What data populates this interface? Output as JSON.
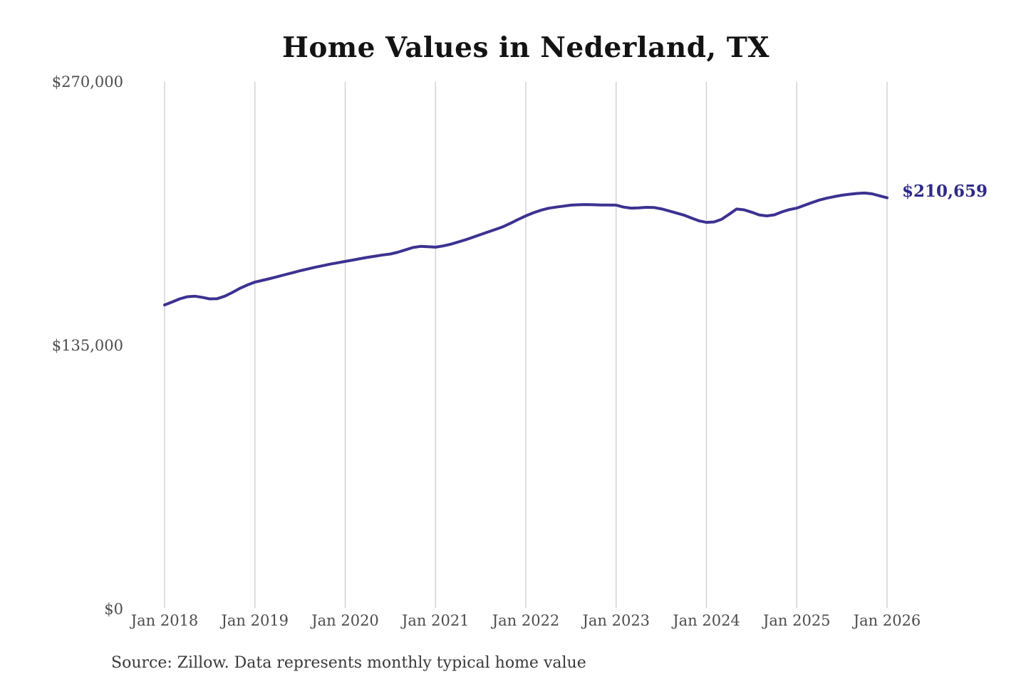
{
  "title": "Home Values in Nederland, TX",
  "annotation": {
    "end_label": "$210,659"
  },
  "source_note": "Source: Zillow. Data represents monthly typical home value",
  "colors": {
    "background": "#ffffff",
    "title_text": "#131313",
    "axis_text": "#4d4d4d",
    "gridline": "#cccccc",
    "line": "#3b3291",
    "end_label_text": "#2f2a87",
    "source_text": "#3a3a3a"
  },
  "chart_data": {
    "type": "line",
    "title": "Home Values in Nederland, TX",
    "xlabel": "",
    "ylabel": "",
    "x_unit": "month",
    "x_start": "2018-01",
    "x_end": "2026-01",
    "x_tick_labels": [
      "Jan 2018",
      "Jan 2019",
      "Jan 2020",
      "Jan 2021",
      "Jan 2022",
      "Jan 2023",
      "Jan 2024",
      "Jan 2025",
      "Jan 2026"
    ],
    "y_ticks": [
      {
        "label": "$0",
        "value": 0
      },
      {
        "label": "$135,000",
        "value": 135000
      },
      {
        "label": "$270,000",
        "value": 270000
      }
    ],
    "ylim": [
      0,
      270000
    ],
    "grid": "vertical-only",
    "legend": "none",
    "series": [
      {
        "name": "Typical home value (USD)",
        "final_value": 210659,
        "final_value_label": "$210,659",
        "values": [
          155800,
          157300,
          158900,
          160000,
          160300,
          159700,
          158900,
          159000,
          160300,
          162200,
          164300,
          166000,
          167500,
          168400,
          169300,
          170300,
          171300,
          172300,
          173300,
          174200,
          175100,
          175900,
          176700,
          177400,
          178100,
          178800,
          179500,
          180200,
          180800,
          181400,
          181900,
          182800,
          184000,
          185200,
          185800,
          185600,
          185400,
          186000,
          186900,
          188000,
          189200,
          190500,
          191900,
          193200,
          194500,
          195900,
          197700,
          199600,
          201400,
          203000,
          204300,
          205300,
          205900,
          206400,
          206900,
          207100,
          207200,
          207100,
          207000,
          207000,
          206900,
          205900,
          205400,
          205500,
          205800,
          205700,
          205000,
          204000,
          202900,
          201800,
          200300,
          198900,
          198100,
          198300,
          199600,
          202200,
          204900,
          204500,
          203300,
          201900,
          201400,
          201900,
          203400,
          204600,
          205400,
          206800,
          208200,
          209500,
          210500,
          211300,
          212000,
          212500,
          212900,
          213100,
          212700,
          211700,
          210659
        ]
      }
    ]
  }
}
